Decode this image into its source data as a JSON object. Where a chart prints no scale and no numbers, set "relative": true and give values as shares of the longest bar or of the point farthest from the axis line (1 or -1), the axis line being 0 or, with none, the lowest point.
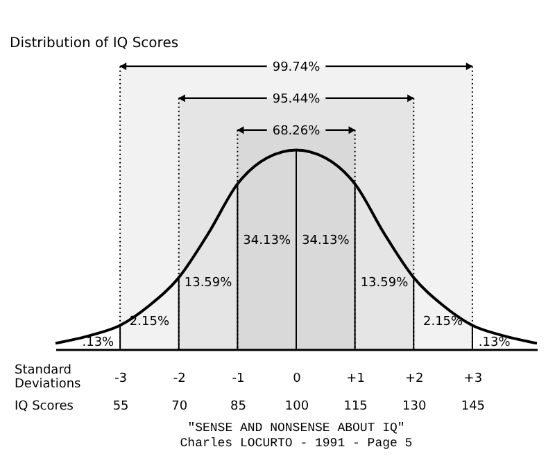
{
  "chart_data": {
    "type": "line",
    "title": "Distribution of IQ Scores",
    "relative": true,
    "xlabel": "Standard Deviations",
    "x2label": "IQ Scores",
    "xlim": [
      -4.1,
      4.1
    ],
    "xticks": [
      -3,
      -2,
      -1,
      0,
      {
        "value": 1,
        "label": "+1"
      },
      {
        "value": 2,
        "label": "+2"
      },
      {
        "value": 3,
        "label": "+3"
      }
    ],
    "x2lim": [
      38.5,
      161.5
    ],
    "x2ticks": [
      55,
      70,
      85,
      100,
      115,
      130,
      145
    ],
    "x": [
      -4.1,
      -3.5,
      -3,
      -2.5,
      -2,
      -1.5,
      -1,
      -0.5,
      0,
      0.5,
      1,
      1.5,
      2,
      2.5,
      3,
      3.5,
      4.1
    ],
    "series": [
      {
        "color": "#000000",
        "values": [
          0.03,
          0.07,
          0.12,
          0.22,
          0.36,
          0.58,
          0.83,
          0.96,
          1,
          0.96,
          0.83,
          0.58,
          0.36,
          0.22,
          0.12,
          0.07,
          0.03
        ]
      }
    ],
    "grid": "x",
    "marker": "none",
    "line_style": "solid",
    "bands": [
      {
        "axis": "x",
        "from": -3,
        "to": 3,
        "label": "99.74%"
      },
      {
        "axis": "x",
        "from": -2,
        "to": 2,
        "label": "95.44%"
      },
      {
        "axis": "x",
        "from": -1,
        "to": 1,
        "label": "68.26%"
      }
    ],
    "annotations": [
      ".13%",
      "2.15%",
      "13.59%",
      "34.13%",
      "34.13%",
      "13.59%",
      "2.15%",
      ".13%",
      "\"SENSE AND NONSENSE ABOUT IQ\"",
      "Charles LOCURTO - 1991 - Page 5"
    ]
  }
}
